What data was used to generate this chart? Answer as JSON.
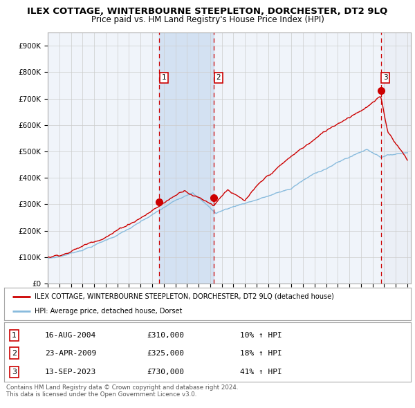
{
  "title": "ILEX COTTAGE, WINTERBOURNE STEEPLETON, DORCHESTER, DT2 9LQ",
  "subtitle": "Price paid vs. HM Land Registry's House Price Index (HPI)",
  "xlim": [
    1995.0,
    2026.0
  ],
  "ylim": [
    0,
    950000
  ],
  "yticks": [
    0,
    100000,
    200000,
    300000,
    400000,
    500000,
    600000,
    700000,
    800000,
    900000
  ],
  "ytick_labels": [
    "£0",
    "£100K",
    "£200K",
    "£300K",
    "£400K",
    "£500K",
    "£600K",
    "£700K",
    "£800K",
    "£900K"
  ],
  "sale_dates": [
    2004.62,
    2009.31,
    2023.71
  ],
  "sale_prices": [
    310000,
    325000,
    730000
  ],
  "sale_labels": [
    "1",
    "2",
    "3"
  ],
  "hpi_line_color": "#88bbdd",
  "price_line_color": "#cc0000",
  "sale_marker_color": "#cc0000",
  "vline_color_red": "#cc0000",
  "shaded_region": [
    2004.62,
    2009.31
  ],
  "hatch_region_start": 2023.71,
  "legend_label_red": "ILEX COTTAGE, WINTERBOURNE STEEPLETON, DORCHESTER, DT2 9LQ (detached house)",
  "legend_label_blue": "HPI: Average price, detached house, Dorset",
  "table_rows": [
    {
      "num": "1",
      "date": "16-AUG-2004",
      "price": "£310,000",
      "hpi": "10% ↑ HPI"
    },
    {
      "num": "2",
      "date": "23-APR-2009",
      "price": "£325,000",
      "hpi": "18% ↑ HPI"
    },
    {
      "num": "3",
      "date": "13-SEP-2023",
      "price": "£730,000",
      "hpi": "41% ↑ HPI"
    }
  ],
  "footnote": "Contains HM Land Registry data © Crown copyright and database right 2024.\nThis data is licensed under the Open Government Licence v3.0.",
  "background_color": "#ffffff",
  "plot_bg_color": "#f0f4fa",
  "grid_color": "#cccccc",
  "title_fontsize": 9.5,
  "subtitle_fontsize": 8.5
}
